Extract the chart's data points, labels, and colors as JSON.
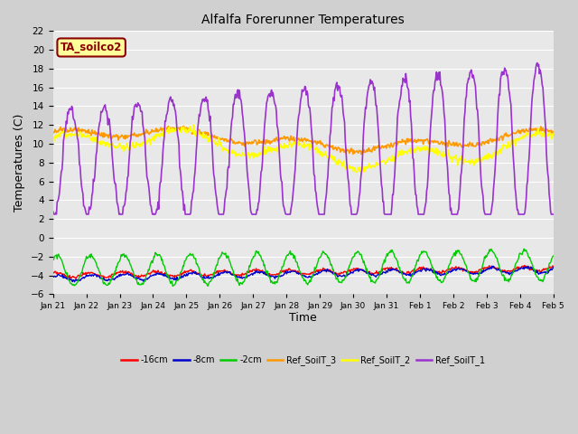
{
  "title": "Alfalfa Forerunner Temperatures",
  "xlabel": "Time",
  "ylabel": "Temperatures (C)",
  "ylim": [
    -6,
    22
  ],
  "yticks": [
    -6,
    -4,
    -2,
    0,
    2,
    4,
    6,
    8,
    10,
    12,
    14,
    16,
    18,
    20,
    22
  ],
  "fig_bg_color": "#d0d0d0",
  "plot_bg_color": "#e8e8e8",
  "annotation_text": "TA_soilco2",
  "annotation_bg": "#ffff99",
  "annotation_border": "#8b0000",
  "annotation_text_color": "#8b0000",
  "series_colors": {
    "m16cm": "#ff0000",
    "m8cm": "#0000cc",
    "m2cm": "#00cc00",
    "ref3": "#ff9900",
    "ref2": "#ffff00",
    "ref1": "#9933cc"
  },
  "legend_labels": [
    "-16cm",
    "-8cm",
    "-2cm",
    "Ref_SoilT_3",
    "Ref_SoilT_2",
    "Ref_SoilT_1"
  ],
  "tick_labels": [
    "Jan 21",
    "Jan 22",
    "Jan 23",
    "Jan 24",
    "Jan 25",
    "Jan 26",
    "Jan 27",
    "Jan 28",
    "Jan 29",
    "Jan 30",
    "Jan 31",
    "Feb 1",
    "Feb 2",
    "Feb 3",
    "Feb 4",
    "Feb 5"
  ],
  "grid_color": "#ffffff",
  "linewidth_soil": 1.0,
  "linewidth_ref": 1.2
}
